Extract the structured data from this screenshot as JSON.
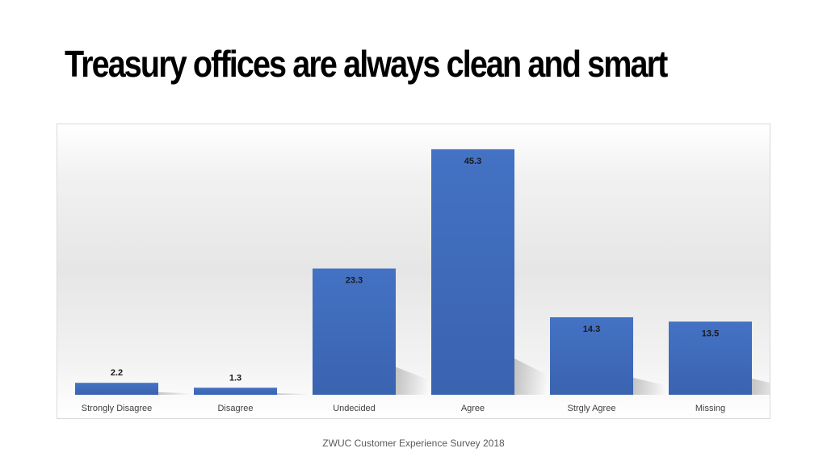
{
  "slide": {
    "title": "Treasury offices are always clean and smart",
    "footer": "ZWUC Customer Experience Survey 2018"
  },
  "colors": {
    "bar_top": "#4472c4",
    "bar_bottom": "#3a63b0",
    "label": "#404040",
    "value_label": "#1a1a1a"
  },
  "chart_data": {
    "type": "bar",
    "title": "",
    "xlabel": "",
    "ylabel": "",
    "categories": [
      "Strongly Disagree",
      "Disagree",
      "Undecided",
      "Agree",
      "Strgly Agree",
      "Missing"
    ],
    "values": [
      2.2,
      1.3,
      23.3,
      45.3,
      14.3,
      13.5
    ],
    "value_labels": [
      "2.2",
      "1.3",
      "23.3",
      "45.3",
      "14.3",
      "13.5"
    ],
    "ylim": [
      0,
      50
    ],
    "grid": false,
    "legend": "none"
  }
}
